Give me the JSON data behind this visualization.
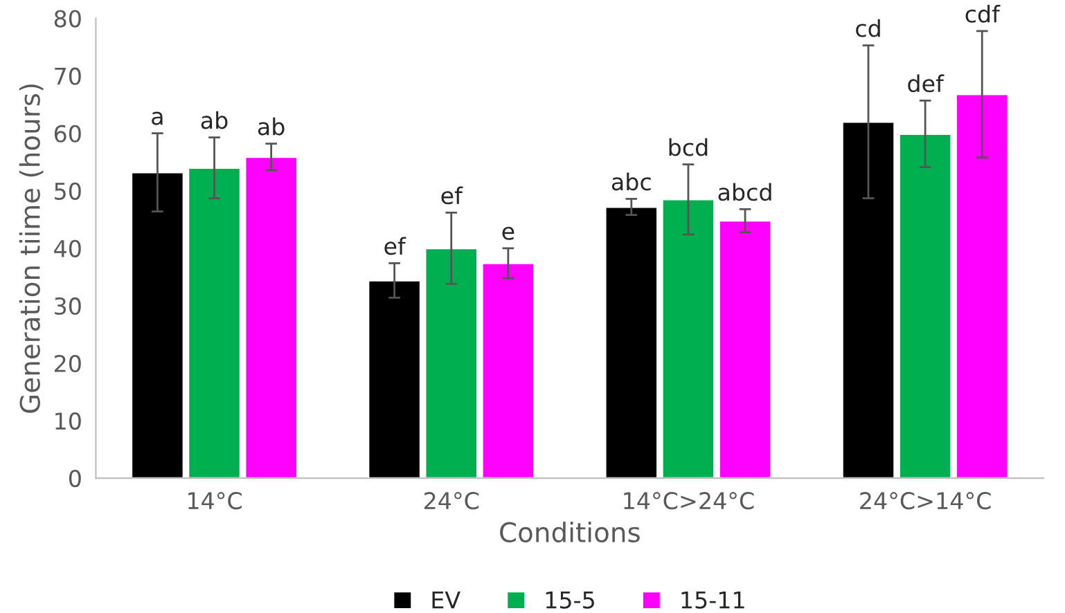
{
  "chart_data": {
    "type": "bar",
    "xlabel": "Conditions",
    "ylabel": "Generation tiime (hours)",
    "categories": [
      "14°C",
      "24°C",
      "14°C>24°C",
      "24°C>14°C"
    ],
    "series": [
      {
        "name": "EV",
        "color": "#000000",
        "values": [
          53.2,
          34.4,
          47.2,
          62.0
        ],
        "errors": [
          6.8,
          3.0,
          1.4,
          13.3
        ]
      },
      {
        "name": "15-5",
        "color": "#00b050",
        "values": [
          54.0,
          40.0,
          48.5,
          59.9
        ],
        "errors": [
          5.3,
          6.2,
          6.1,
          5.8
        ]
      },
      {
        "name": "15-11",
        "color": "#ff00ff",
        "values": [
          55.9,
          37.4,
          44.8,
          66.8
        ],
        "errors": [
          2.3,
          2.6,
          2.0,
          11.0
        ]
      }
    ],
    "ylim": [
      0,
      80
    ],
    "yticks": [
      0,
      10,
      20,
      30,
      40,
      50,
      60,
      70,
      80
    ],
    "grid": false,
    "legend": "bottom",
    "annotations": [
      "a",
      "ab",
      "ab",
      "ef",
      "ef",
      "e",
      "abc",
      "bcd",
      "abcd",
      "cd",
      "def",
      "cdf"
    ]
  }
}
